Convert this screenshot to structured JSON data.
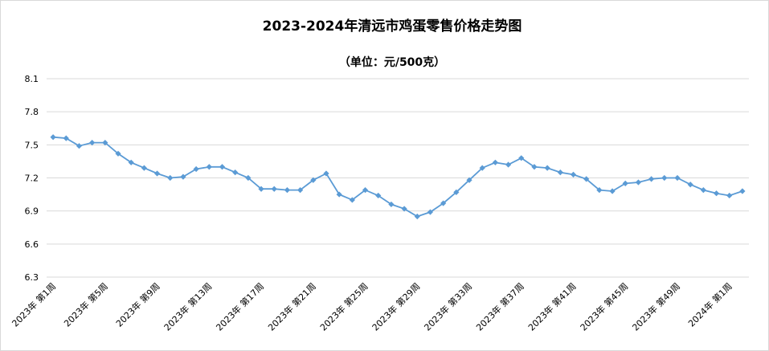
{
  "chart_data": {
    "type": "line",
    "title": "2023-2024年清远市鸡蛋零售价格走势图",
    "subtitle": "（单位：元/500克）",
    "ylim": [
      6.3,
      8.1
    ],
    "y_ticks": [
      "8.1",
      "7.8",
      "7.5",
      "7.2",
      "6.9",
      "6.6",
      "6.3"
    ],
    "y_tick_values": [
      8.1,
      7.8,
      7.5,
      7.2,
      6.9,
      6.6,
      6.3
    ],
    "grid": true,
    "legend": "none",
    "color": "#5b9bd5",
    "x_labels": [
      "2023年 第1周",
      "2023年 第5周",
      "2023年 第9周",
      "2023年 第13周",
      "2023年 第17周",
      "2023年 第21周",
      "2023年 第25周",
      "2023年 第29周",
      "2023年 第33周",
      "2023年 第37周",
      "2023年 第41周",
      "2023年 第45周",
      "2023年 第49周",
      "2024年 第1周"
    ],
    "series": [
      {
        "values": [
          7.57,
          7.56,
          7.49,
          7.52,
          7.52,
          7.42,
          7.34,
          7.29,
          7.24,
          7.2,
          7.21,
          7.28,
          7.3,
          7.3,
          7.25,
          7.2,
          7.1,
          7.1,
          7.09,
          7.09,
          7.18,
          7.24,
          7.05,
          7.0,
          7.09,
          7.04,
          6.96,
          6.92,
          6.85,
          6.89,
          6.97,
          7.07,
          7.18,
          7.29,
          7.34,
          7.32,
          7.38,
          7.3,
          7.29,
          7.25,
          7.23,
          7.19,
          7.09,
          7.08,
          7.15,
          7.16,
          7.19,
          7.2,
          7.2,
          7.14,
          7.09,
          7.06,
          7.04,
          7.08
        ]
      }
    ]
  }
}
